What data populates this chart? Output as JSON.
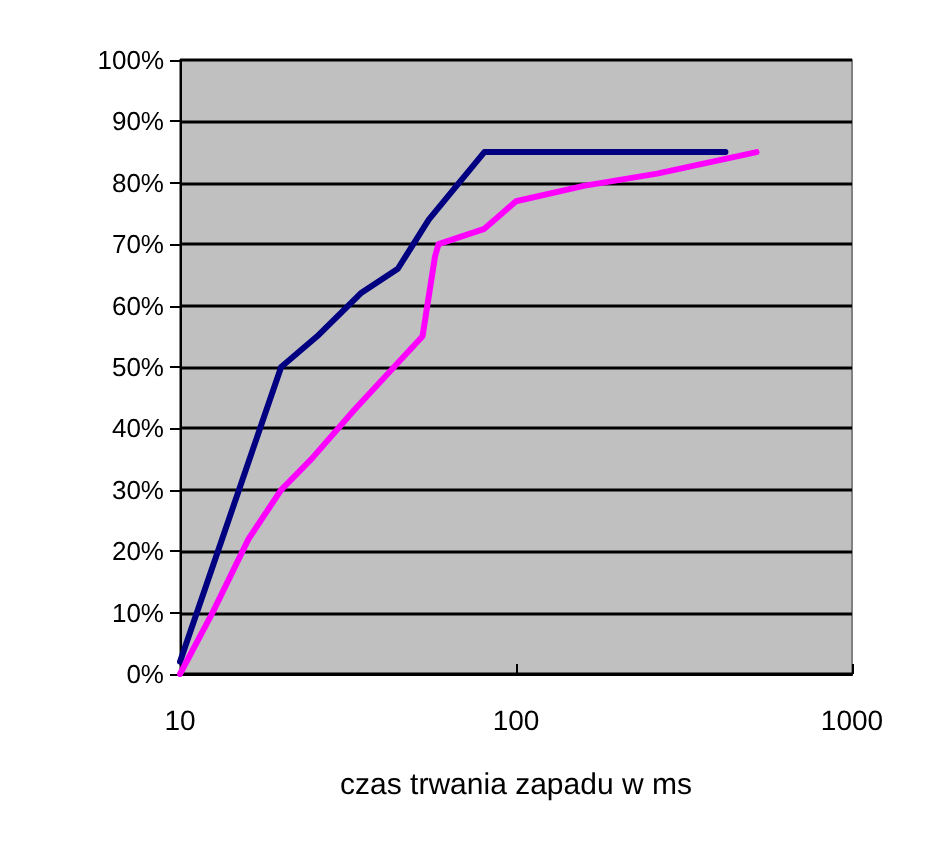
{
  "chart_data": {
    "type": "line",
    "xlabel": "czas trwania zapadu w ms",
    "log": "x",
    "xlim": [
      10,
      1000
    ],
    "xticks": [
      10,
      100,
      1000
    ],
    "ylim": [
      0,
      100
    ],
    "yticks": [
      {
        "value": 0,
        "label": "0%"
      },
      {
        "value": 10,
        "label": "10%"
      },
      {
        "value": 20,
        "label": "20%"
      },
      {
        "value": 30,
        "label": "30%"
      },
      {
        "value": 40,
        "label": "40%"
      },
      {
        "value": 50,
        "label": "50%"
      },
      {
        "value": 60,
        "label": "60%"
      },
      {
        "value": 70,
        "label": "70%"
      },
      {
        "value": 80,
        "label": "80%"
      },
      {
        "value": 90,
        "label": "90%"
      },
      {
        "value": 100,
        "label": "100%"
      }
    ],
    "grid": "y",
    "marker": "none",
    "series": [
      {
        "color": "#000080",
        "x": [
          10,
          20,
          25.6,
          34.5,
          44.5,
          55,
          80.5,
          420
        ],
        "values": [
          2,
          50,
          55,
          62,
          66,
          74,
          85,
          85
        ]
      },
      {
        "color": "#ff00ff",
        "x": [
          10,
          12.5,
          16,
          20,
          24.6,
          33,
          52.7,
          57.4,
          58.8,
          80.5,
          100,
          159,
          263,
          520
        ],
        "values": [
          0,
          10,
          22,
          30,
          35,
          43,
          55,
          68,
          70,
          72.5,
          77,
          79.5,
          81.5,
          85
        ]
      }
    ]
  }
}
